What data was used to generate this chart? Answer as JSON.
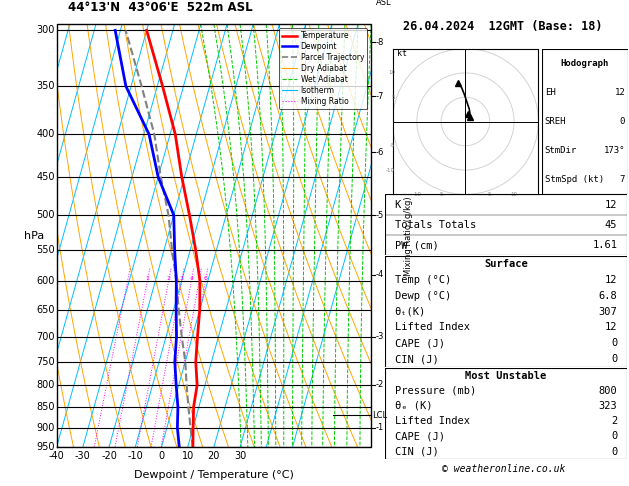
{
  "title_left": "44°13'N  43°06'E  522m ASL",
  "title_right": "26.04.2024  12GMT (Base: 18)",
  "xlabel": "Dewpoint / Temperature (°C)",
  "ylabel_left": "hPa",
  "background_color": "#ffffff",
  "isotherm_color": "#00bfff",
  "dry_adiabat_color": "#ffa500",
  "wet_adiabat_color": "#00cc00",
  "mixing_ratio_color": "#ff00ff",
  "temp_color": "#ff0000",
  "dewp_color": "#0000ff",
  "parcel_color": "#808080",
  "lcl_pressure": 870,
  "temperature_profile": {
    "pressures": [
      950,
      900,
      850,
      800,
      750,
      700,
      650,
      600,
      550,
      500,
      450,
      400,
      350,
      300
    ],
    "temps": [
      12,
      10,
      8,
      7,
      4,
      2,
      0,
      -3,
      -8,
      -14,
      -21,
      -28,
      -38,
      -50
    ]
  },
  "dewpoint_profile": {
    "pressures": [
      950,
      900,
      850,
      800,
      750,
      700,
      650,
      600,
      550,
      500,
      450,
      400,
      350,
      300
    ],
    "dewps": [
      6.8,
      4,
      2,
      -1,
      -4,
      -6,
      -9,
      -12,
      -16,
      -20,
      -30,
      -38,
      -52,
      -62
    ]
  },
  "parcel_profile": {
    "pressures": [
      950,
      900,
      850,
      800,
      750,
      700,
      650,
      600,
      550,
      500,
      450,
      400,
      350,
      300
    ],
    "temps": [
      12,
      9,
      6,
      3,
      0,
      -4,
      -8,
      -12,
      -17,
      -22,
      -29,
      -36,
      -46,
      -58
    ]
  },
  "stats": {
    "K": 12,
    "Totals_Totals": 45,
    "PW_cm": 1.61,
    "Surface_Temp": 12,
    "Surface_Dewp": 6.8,
    "theta_e_surface": 307,
    "Lifted_Index_surface": 12,
    "CAPE_surface": 0,
    "CIN_surface": 0,
    "MU_Pressure": 800,
    "theta_e_MU": 323,
    "Lifted_Index_MU": 2,
    "CAPE_MU": 0,
    "CIN_MU": 0,
    "EH": 12,
    "SREH": 0,
    "StmDir": 173,
    "StmSpd_kt": 7
  },
  "km_ticks": [
    1,
    2,
    3,
    4,
    5,
    6,
    7,
    8
  ],
  "km_pressures": [
    900,
    800,
    700,
    590,
    500,
    420,
    360,
    310
  ]
}
